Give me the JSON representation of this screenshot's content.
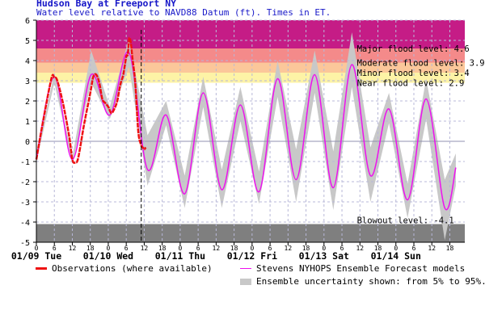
{
  "header": {
    "title": "Hudson Bay at Freeport NY",
    "subtitle": "Water level relative to NAVD88 Datum (ft). Times in ET."
  },
  "colors": {
    "major_band": "#c51c86",
    "moderate_band": "#f48a8a",
    "minor_band": "#fbc79a",
    "near_band": "#fdf3a6",
    "blowout_band": "#7f7f7f",
    "observation_line": "#ee1111",
    "forecast_line": "#ee11ee",
    "uncertainty_band": "#c8c8c8",
    "title_text": "#1818c8"
  },
  "chart_data": {
    "type": "line",
    "title": "Hudson Bay at Freeport NY",
    "subtitle": "Water level relative to NAVD88 Datum (ft). Times in ET.",
    "ylim": [
      -5,
      6
    ],
    "y_ticks": [
      "-5",
      "-4",
      "-3",
      "-2",
      "-1",
      "0",
      "1",
      "2",
      "3",
      "4",
      "5",
      "6"
    ],
    "x_unit": "hours since 01/09 00:00 ET",
    "xlim": [
      0,
      143
    ],
    "hour_ticks": [
      "0",
      "6",
      "12",
      "18",
      "0",
      "6",
      "12",
      "18",
      "0",
      "6",
      "12",
      "18",
      "0",
      "6",
      "12",
      "18",
      "0",
      "6",
      "12",
      "18",
      "0",
      "6",
      "12",
      "18"
    ],
    "day_labels": [
      "01/09 Tue",
      "01/10 Wed",
      "01/11 Thu",
      "01/12 Fri",
      "01/13 Sat",
      "01/14 Sun"
    ],
    "grid": true,
    "current_time_hour": 35,
    "thresholds": [
      {
        "label": "Major flood level: 4.6",
        "value": 4.6
      },
      {
        "label": "Moderate flood level: 3.9",
        "value": 3.9
      },
      {
        "label": "Minor flood level: 3.4",
        "value": 3.4
      },
      {
        "label": "Near flood level: 2.9",
        "value": 2.9
      },
      {
        "label": "Blowout level: -4.1",
        "value": -4.1
      }
    ],
    "series": [
      {
        "name": "Observations (where available)",
        "points": [
          [
            0,
            -0.9
          ],
          [
            2,
            0.8
          ],
          [
            5,
            3.1
          ],
          [
            6,
            3.15
          ],
          [
            7,
            3.0
          ],
          [
            9,
            1.8
          ],
          [
            11,
            0.2
          ],
          [
            12,
            -0.9
          ],
          [
            13,
            -1.05
          ],
          [
            14,
            -0.8
          ],
          [
            16,
            0.9
          ],
          [
            18,
            2.4
          ],
          [
            19,
            3.2
          ],
          [
            20,
            3.3
          ],
          [
            21,
            2.9
          ],
          [
            22,
            2.1
          ],
          [
            23,
            1.9
          ],
          [
            24,
            1.7
          ],
          [
            25,
            1.4
          ],
          [
            26,
            1.6
          ],
          [
            27,
            2.0
          ],
          [
            28,
            2.8
          ],
          [
            29,
            3.3
          ],
          [
            30,
            4.2
          ],
          [
            30.5,
            4.3
          ],
          [
            31,
            5.1
          ],
          [
            31.5,
            4.9
          ],
          [
            32,
            4.2
          ],
          [
            33,
            2.9
          ],
          [
            34,
            0.5
          ],
          [
            35,
            -0.2
          ],
          [
            35.5,
            -0.3
          ],
          [
            36,
            -0.4
          ],
          [
            36.5,
            -0.3
          ]
        ]
      },
      {
        "name": "Stevens NYHOPS Ensemble Forecast models",
        "points": [
          [
            0,
            -0.9
          ],
          [
            6,
            3.2
          ],
          [
            12,
            -0.9
          ],
          [
            18.3,
            3.3
          ],
          [
            24.5,
            1.3
          ],
          [
            30.9,
            4.4
          ],
          [
            37.1,
            -1.4
          ],
          [
            43.3,
            1.3
          ],
          [
            49.5,
            -2.6
          ],
          [
            55.7,
            2.4
          ],
          [
            61.9,
            -2.4
          ],
          [
            68.1,
            1.8
          ],
          [
            74.3,
            -2.5
          ],
          [
            80.5,
            3.1
          ],
          [
            86.7,
            -1.9
          ],
          [
            92.9,
            3.3
          ],
          [
            99.1,
            -2.3
          ],
          [
            105.3,
            3.8
          ],
          [
            111.5,
            -1.7
          ],
          [
            117.7,
            1.6
          ],
          [
            123.9,
            -2.9
          ],
          [
            130.1,
            2.1
          ],
          [
            136.3,
            -3.3
          ],
          [
            140,
            -1.3
          ]
        ]
      },
      {
        "name": "Ensemble uncertainty shown: from 5% to 95%.",
        "points_low_high": [
          [
            0,
            -1.0,
            -0.8
          ],
          [
            6,
            2.9,
            3.4
          ],
          [
            12,
            -1.1,
            -0.8
          ],
          [
            18.3,
            2.9,
            4.5
          ],
          [
            24.5,
            1.1,
            1.7
          ],
          [
            30.9,
            3.7,
            5.1
          ],
          [
            37.1,
            -2.2,
            0.3
          ],
          [
            43.3,
            0.8,
            2.0
          ],
          [
            49.5,
            -3.3,
            -1.7
          ],
          [
            55.7,
            1.7,
            3.2
          ],
          [
            61.9,
            -3.3,
            -1.4
          ],
          [
            68.1,
            1.0,
            2.7
          ],
          [
            74.3,
            -3.1,
            -1.5
          ],
          [
            80.5,
            2.2,
            4.0
          ],
          [
            86.7,
            -3.0,
            -0.4
          ],
          [
            92.9,
            2.4,
            4.5
          ],
          [
            99.1,
            -3.4,
            -0.5
          ],
          [
            105.3,
            2.7,
            5.4
          ],
          [
            111.5,
            -3.0,
            -0.3
          ],
          [
            117.7,
            0.9,
            2.4
          ],
          [
            123.9,
            -3.8,
            -2.1
          ],
          [
            130.1,
            1.1,
            3.1
          ],
          [
            136.3,
            -4.9,
            -1.9
          ],
          [
            140,
            -2.2,
            -0.6
          ]
        ]
      }
    ]
  },
  "legend": {
    "observations_label": "Observations (where available)",
    "forecast_label": "Stevens NYHOPS Ensemble Forecast models",
    "uncertainty_label": "Ensemble uncertainty shown: from 5% to 95%."
  }
}
